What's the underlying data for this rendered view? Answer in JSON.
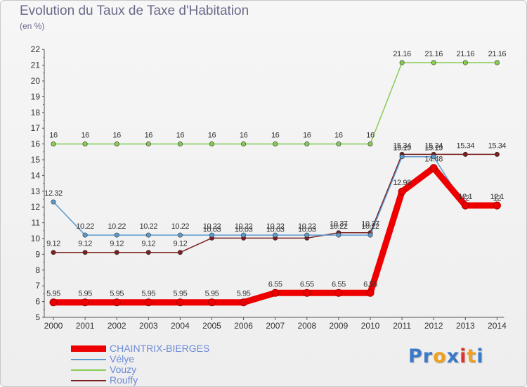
{
  "title": "Evolution du Taux de Taxe d'Habitation",
  "subtitle": "(en %)",
  "logo": {
    "letters": [
      {
        "ch": "P",
        "color": "#3a78c8"
      },
      {
        "ch": "r",
        "color": "#3a78c8"
      },
      {
        "ch": "o",
        "color": "#f0a020"
      },
      {
        "ch": "x",
        "color": "#3a78c8"
      },
      {
        "ch": "i",
        "color": "#e03030"
      },
      {
        "ch": "t",
        "color": "#f0a020"
      },
      {
        "ch": "i",
        "color": "#3a78c8"
      }
    ]
  },
  "chart_data": {
    "type": "line",
    "title": "Evolution du Taux de Taxe d'Habitation",
    "subtitle": "(en %)",
    "x": [
      "2000",
      "2001",
      "2002",
      "2003",
      "2004",
      "2005",
      "2006",
      "2007",
      "2008",
      "2009",
      "2010",
      "2011",
      "2012",
      "2013",
      "2014"
    ],
    "ylim": [
      5,
      22
    ],
    "yticks": [
      5,
      6,
      7,
      8,
      9,
      10,
      11,
      12,
      13,
      14,
      15,
      16,
      17,
      18,
      19,
      20,
      21,
      22
    ],
    "grid": false,
    "legend_position": "bottom-left",
    "series": [
      {
        "name": "CHAINTRIX-BIERGES",
        "color": "#ee0000",
        "values": [
          5.95,
          5.95,
          5.95,
          5.95,
          5.95,
          5.95,
          5.95,
          6.55,
          6.55,
          6.55,
          6.55,
          12.98,
          14.48,
          12.1,
          12.1
        ],
        "labels": [
          "5.95",
          "5.95",
          "5.95",
          "5.95",
          "5.95",
          "5.95",
          "5.95",
          "6.55",
          "6.55",
          "6.55",
          "6.55",
          "12.98",
          "14.48",
          "12.1",
          "12.1"
        ]
      },
      {
        "name": "Vélye",
        "color": "#5a9ad0",
        "values": [
          12.32,
          10.22,
          10.22,
          10.22,
          10.22,
          10.22,
          10.22,
          10.22,
          10.22,
          10.22,
          10.22,
          15.19,
          15.19,
          12,
          12
        ],
        "labels": [
          "12.32",
          "10.22",
          "10.22",
          "10.22",
          "10.22",
          "10.22",
          "10.22",
          "10.22",
          "10.22",
          "10.22",
          "10.22",
          "15.19",
          "15.19",
          "12",
          "12"
        ]
      },
      {
        "name": "Vouzy",
        "color": "#88cc55",
        "values": [
          16,
          16,
          16,
          16,
          16,
          16,
          16,
          16,
          16,
          16,
          16,
          21.16,
          21.16,
          21.16,
          21.16
        ],
        "labels": [
          "16",
          "16",
          "16",
          "16",
          "16",
          "16",
          "16",
          "16",
          "16",
          "16",
          "16",
          "21.16",
          "21.16",
          "21.16",
          "21.16"
        ]
      },
      {
        "name": "Rouffy",
        "color": "#7a2020",
        "values": [
          9.12,
          9.12,
          9.12,
          9.12,
          9.12,
          10.03,
          10.03,
          10.03,
          10.03,
          10.37,
          10.37,
          15.34,
          15.34,
          15.34,
          15.34
        ],
        "labels": [
          "9.12",
          "9.12",
          "9.12",
          "9.12",
          "9.12",
          "10.03",
          "10.03",
          "10.03",
          "10.03",
          "10.37",
          "10.37",
          "15.34",
          "15.34",
          "15.34",
          "15.34"
        ]
      }
    ]
  }
}
